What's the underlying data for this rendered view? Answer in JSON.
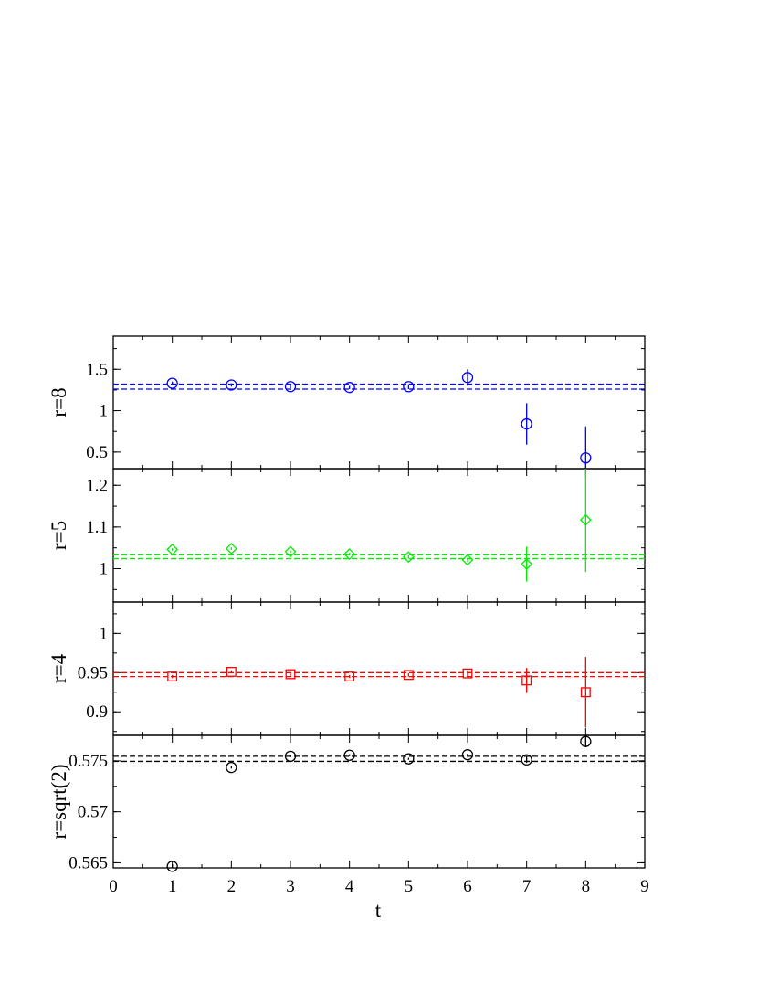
{
  "chart_data": {
    "type": "scatter",
    "xlabel": "t",
    "xlim": [
      0,
      9
    ],
    "xticks": [
      0,
      1,
      2,
      3,
      4,
      5,
      6,
      7,
      8,
      9
    ],
    "xtick_labels": [
      "0",
      "1",
      "2",
      "3",
      "4",
      "5",
      "6",
      "7",
      "8",
      "9"
    ],
    "panels": [
      {
        "ylabel": "r=8",
        "ylim": [
          0.3,
          1.9
        ],
        "yticks": [
          0.5,
          1.0,
          1.5
        ],
        "ytick_labels": [
          "0.5",
          "1",
          "1.5"
        ],
        "color": "#0000ff",
        "marker": "circle",
        "x": [
          1,
          2,
          3,
          4,
          5,
          6,
          7,
          8
        ],
        "y": [
          1.33,
          1.31,
          1.29,
          1.28,
          1.29,
          1.4,
          0.84,
          0.43
        ],
        "yerr": [
          0.02,
          0.02,
          0.02,
          0.02,
          0.03,
          0.1,
          0.25,
          0.38
        ],
        "band": [
          1.26,
          1.32
        ]
      },
      {
        "ylabel": "r=5",
        "ylim": [
          0.92,
          1.24
        ],
        "yticks": [
          1.0,
          1.1,
          1.2
        ],
        "ytick_labels": [
          "1",
          "1.1",
          "1.2"
        ],
        "color": "#00ee00",
        "marker": "diamond",
        "x": [
          1,
          2,
          3,
          4,
          5,
          6,
          7,
          8
        ],
        "y": [
          1.046,
          1.048,
          1.041,
          1.035,
          1.028,
          1.021,
          1.011,
          1.117
        ],
        "yerr": [
          0.003,
          0.003,
          0.003,
          0.003,
          0.004,
          0.005,
          0.042,
          0.125
        ],
        "band": [
          1.024,
          1.033
        ]
      },
      {
        "ylabel": "r=4",
        "ylim": [
          0.87,
          1.04
        ],
        "yticks": [
          0.9,
          0.95,
          1.0
        ],
        "ytick_labels": [
          "0.9",
          "0.95",
          "1"
        ],
        "color": "#ff0000",
        "marker": "square",
        "x": [
          1,
          2,
          3,
          4,
          5,
          6,
          7,
          8
        ],
        "y": [
          0.945,
          0.951,
          0.948,
          0.945,
          0.947,
          0.949,
          0.94,
          0.925
        ],
        "yerr": [
          0.002,
          0.002,
          0.002,
          0.002,
          0.002,
          0.004,
          0.016,
          0.045
        ],
        "band": [
          0.945,
          0.95
        ]
      },
      {
        "ylabel": "r=sqrt(2)",
        "ylim": [
          0.5645,
          0.5775
        ],
        "yticks": [
          0.565,
          0.57,
          0.575
        ],
        "ytick_labels": [
          "0.565",
          "0.57",
          "0.575"
        ],
        "color": "#000000",
        "marker": "circle",
        "x": [
          1,
          2,
          3,
          4,
          5,
          6,
          7,
          8
        ],
        "y": [
          0.56465,
          0.57435,
          0.57545,
          0.57555,
          0.5752,
          0.5756,
          0.5751,
          0.5769
        ],
        "yerr": [
          0.0002,
          0.0001,
          0.0001,
          0.0001,
          0.0001,
          0.0001,
          0.0003,
          0.0005
        ],
        "band": [
          0.57495,
          0.57545
        ]
      }
    ]
  }
}
